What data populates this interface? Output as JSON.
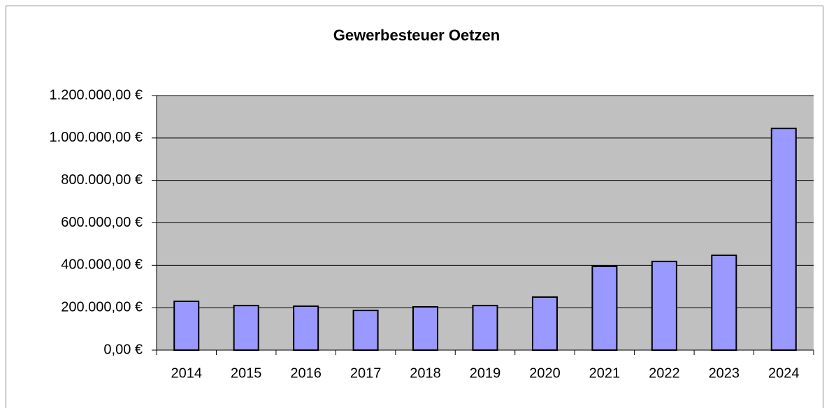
{
  "chart_data": {
    "type": "bar",
    "title": "Gewerbesteuer Oetzen",
    "categories": [
      "2014",
      "2015",
      "2016",
      "2017",
      "2018",
      "2019",
      "2020",
      "2021",
      "2022",
      "2023",
      "2024"
    ],
    "values": [
      230000,
      210000,
      207000,
      187000,
      204000,
      210000,
      250000,
      395000,
      418000,
      447000,
      1045000
    ],
    "color": "#9999ff",
    "ylim": [
      0,
      1200000
    ],
    "yticks": [
      {
        "value": 0,
        "label": "0,00 €"
      },
      {
        "value": 200000,
        "label": "200.000,00 €"
      },
      {
        "value": 400000,
        "label": "400.000,00 €"
      },
      {
        "value": 600000,
        "label": "600.000,00 €"
      },
      {
        "value": 800000,
        "label": "800.000,00 €"
      },
      {
        "value": 1000000,
        "label": "1.000.000,00 €"
      },
      {
        "value": 1200000,
        "label": "1.200.000,00 €"
      }
    ],
    "grid": true
  }
}
